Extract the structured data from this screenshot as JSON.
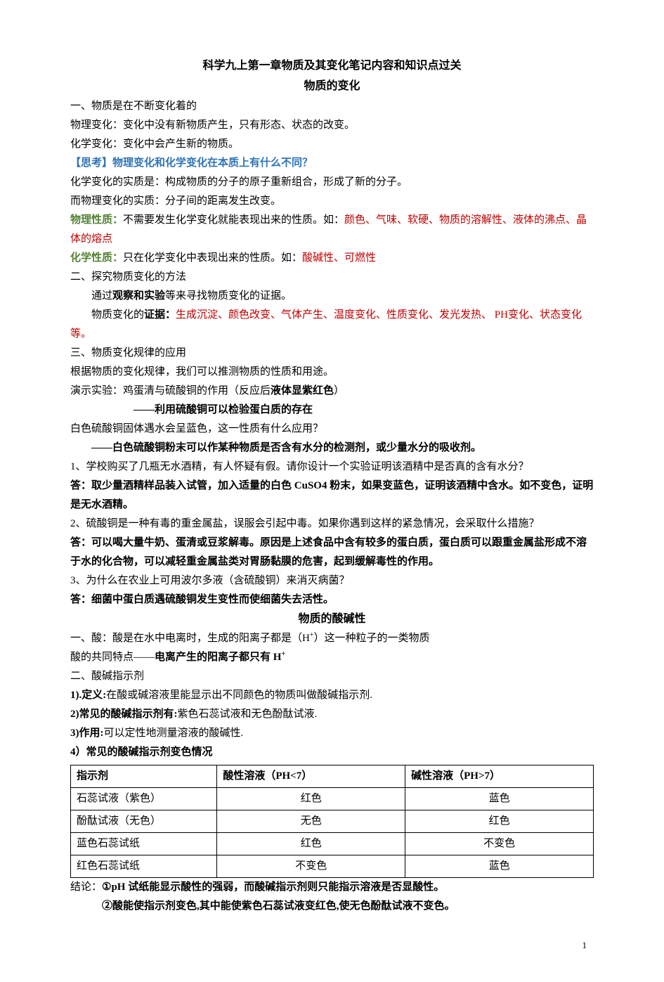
{
  "title": "科学九上第一章物质及其变化笔记内容和知识点过关",
  "subtitle1": "物质的变化",
  "p1": "一、物质是在不断变化着的",
  "p2": "物理变化：变化中没有新物质产生，只有形态、状态的改变。",
  "p3": "化学变化：变化中会产生新的物质。",
  "p4_label": "【思考】物理变化和化学变化在本质上有什么不同？",
  "p5": "化学变化的实质是：构成物质的分子的原子重新组合，形成了新的分子。",
  "p6": "而物理变化的实质：分子间的距离发生改变。",
  "p7_label": "物理性质：",
  "p7_text": "不需要发生化学变化就能表现出来的性质。如：",
  "p7_red": "颜色、气味、软硬、物质的溶解性、液体的沸点、晶体的熔点",
  "p8_label": "化学性质：",
  "p8_text": "只在化学变化中表现出来的性质。如：",
  "p8_red": "酸碱性、可燃性",
  "p9": "二、探究物质变化的方法",
  "p10_pre": "通过",
  "p10_bold": "观察和实验",
  "p10_post": "等来寻找物质变化的证据。",
  "p11_pre": "物质变化的",
  "p11_bold": "证据：",
  "p11_red": "生成沉淀、颜色改变、气体产生、温度变化、性质变化、发光发热、 PH变化、状态变化等。",
  "p12": "三、物质变化规律的应用",
  "p13": "根据物质的变化规律，我们可以推测物质的性质和用途。",
  "p14_pre": "演示实验：鸡蛋清与硫酸铜的作用（反应后",
  "p14_bold": "液体显紫红色",
  "p14_post": "）",
  "p15": "――利用硫酸铜可以检验蛋白质的存在",
  "p16": "白色硫酸铜固体遇水会呈蓝色，这一性质有什么应用？",
  "p17": "――白色硫酸铜粉末可以作某种物质是否含有水分的检测剂，或少量水分的吸收剂。",
  "p18": "1、学校购买了几瓶无水酒精，有人怀疑有假。请你设计一个实验证明该酒精中是否真的含有水分？",
  "p19_label": "答：",
  "p19_text": "取少量酒精样品装入试管，加入适量的白色 CuSO4 粉末，如果变蓝色，证明该酒精中含水。如不变色，证明是无水酒精。",
  "p20": "2、硫酸铜是一种有毒的重金属盐，误服会引起中毒。如果你遇到这样的紧急情况，会采取什么措施？",
  "p21_label": "答：",
  "p21_text": "可以喝大量牛奶、蛋清或豆浆解毒。原因是上述食品中含有较多的蛋白质，蛋白质可以跟重金属盐形成不溶于水的化合物，可以减轻重金属盐类对胃肠黏膜的危害，起到缓解毒性的作用。",
  "p22": "3、为什么在农业上可用波尔多液（含硫酸铜）来消灭病菌？",
  "p23_label": "答：",
  "p23_text": "细菌中蛋白质遇硫酸铜发生变性而使细菌失去活性。",
  "subtitle2": "物质的酸碱性",
  "p24_pre": "一、酸：酸是在水中电离时，生成的阳离子都是（H",
  "p24_sup": "+",
  "p24_post": "）这一种粒子的一类物质",
  "p25_pre": "酸的共同特点――",
  "p25_bold_pre": "电离产生的阳离子都只有 H",
  "p25_sup": "+",
  "p26": "二、酸碱指示剂",
  "p27_label": "1).定义:",
  "p27_text": "在酸或碱溶液里能显示出不同颜色的物质叫做酸碱指示剂.",
  "p28_label": "2)常见的酸碱指示剂有:",
  "p28_text": "紫色石蕊试液和无色酚酞试液.",
  "p29_label": "3)作用:",
  "p29_text": "可以定性地测量溶液的酸碱性.",
  "p30": "4）常见的酸碱指示剂变色情况",
  "table": {
    "cols": [
      "指示剂",
      "酸性溶液（PH<7）",
      "碱性溶液（PH>7）"
    ],
    "rows": [
      [
        "石蕊试液（紫色）",
        "红色",
        "蓝色"
      ],
      [
        "酚酞试液（无色）",
        "无色",
        "红色"
      ],
      [
        "蓝色石蕊试纸",
        "红色",
        "不变色"
      ],
      [
        "红色石蕊试纸",
        "不变色",
        "蓝色"
      ]
    ],
    "col_widths": [
      "28%",
      "36%",
      "36%"
    ]
  },
  "p31_pre": "结论：",
  "p31_bold": "①pH 试纸能显示酸性的强弱，而酸碱指示剂则只能指示溶液是否显酸性。",
  "p32": "②酸能使指示剂变色,其中能使紫色石蕊试液变红色,使无色酚酞试液不变色。",
  "page_number": "1"
}
